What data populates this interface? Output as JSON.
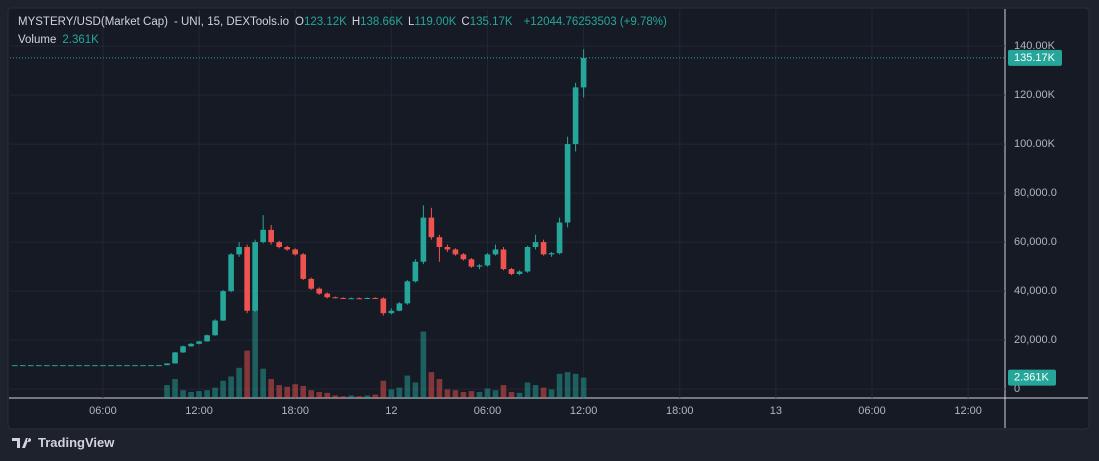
{
  "chart_data": {
    "type": "candlestick",
    "title": "MYSTERY/USD(Market Cap)",
    "subtitle": "- UNI, 15, DEXTools.io",
    "ohlc_legend": [
      [
        "O",
        "123.12K"
      ],
      [
        "H",
        "138.66K"
      ],
      [
        "L",
        "119.00K"
      ],
      [
        "C",
        "135.17K"
      ]
    ],
    "change": "+12044.76253503 (+9.78%)",
    "volume_title": "Volume",
    "volume_legend": "2.361K",
    "last_price": {
      "value": 135170,
      "label": "135.17K"
    },
    "last_volume": {
      "value": 2361,
      "label": "2.361K"
    },
    "brand": "TradingView",
    "up_color": "#26a69a",
    "down_color": "#ef5350",
    "grid": true,
    "x": [
      0,
      0.5,
      1,
      1.5,
      2,
      2.5,
      3,
      3.5,
      4,
      4.5,
      5,
      5.5,
      6,
      6.5,
      7,
      7.5,
      8,
      8.5,
      9,
      9.5,
      10,
      10.5,
      11,
      11.5,
      12,
      12.5,
      13,
      13.5,
      14,
      14.5,
      15,
      15.5,
      16,
      16.5,
      17,
      17.5,
      18,
      18.5,
      19,
      19.5,
      20,
      20.5,
      21,
      21.5,
      22,
      22.5,
      23,
      23.5,
      24,
      24.5,
      25,
      25.5,
      26,
      26.5,
      27,
      27.5,
      28,
      28.5,
      29,
      29.5,
      30,
      30.5,
      31,
      31.5,
      32,
      32.5,
      33,
      33.5,
      34,
      34.5,
      35,
      35.5,
      36
    ],
    "open": [
      9800,
      9800,
      9800,
      9800,
      9800,
      9800,
      9800,
      9800,
      9800,
      9800,
      9800,
      9800,
      9800,
      9800,
      9800,
      9800,
      9800,
      9800,
      9800,
      9800,
      9800,
      10500,
      15000,
      17500,
      18500,
      19500,
      22000,
      28000,
      40000,
      55000,
      58000,
      32000,
      60000,
      65000,
      60000,
      58000,
      57000,
      55000,
      45000,
      41000,
      39000,
      37500,
      37200,
      37000,
      37100,
      37000,
      37200,
      37000,
      31000,
      32000,
      35000,
      44000,
      52000,
      70000,
      62000,
      58000,
      57000,
      55000,
      53000,
      50000,
      50500,
      55000,
      57000,
      49000,
      47000,
      48000,
      58000,
      60000,
      55000,
      55500,
      68000,
      100000,
      123120
    ],
    "high": [
      9800,
      9800,
      9800,
      9800,
      9800,
      9800,
      9800,
      9800,
      9800,
      9800,
      9800,
      9800,
      9800,
      9800,
      9800,
      9800,
      9800,
      9800,
      9800,
      9800,
      10600,
      15200,
      17800,
      18800,
      19700,
      22300,
      28500,
      40500,
      55500,
      60000,
      59000,
      61000,
      71000,
      67000,
      60500,
      58500,
      57500,
      55500,
      45500,
      41500,
      39500,
      37800,
      37500,
      37400,
      37400,
      37400,
      37500,
      37500,
      33000,
      35500,
      44500,
      53000,
      75000,
      74000,
      63000,
      59000,
      57500,
      55500,
      53500,
      51000,
      55500,
      59000,
      58000,
      49500,
      48500,
      58500,
      63000,
      61000,
      56000,
      70000,
      103000,
      125000,
      138660
    ],
    "low": [
      9800,
      9800,
      9800,
      9800,
      9800,
      9800,
      9800,
      9800,
      9800,
      9800,
      9800,
      9800,
      9800,
      9800,
      9800,
      9800,
      9800,
      9800,
      9800,
      9800,
      9800,
      10500,
      14800,
      17300,
      18300,
      19400,
      21800,
      27800,
      39500,
      54000,
      31000,
      31500,
      59500,
      59000,
      57500,
      56500,
      54500,
      44500,
      40500,
      38500,
      37000,
      37000,
      36800,
      36800,
      36800,
      36800,
      36900,
      30000,
      30500,
      31800,
      34500,
      43500,
      51000,
      61000,
      52000,
      56000,
      54500,
      52500,
      49500,
      49000,
      50000,
      54500,
      48500,
      46500,
      46500,
      47500,
      57000,
      54500,
      54000,
      55000,
      66000,
      97000,
      119000
    ],
    "close": [
      9800,
      9800,
      9800,
      9800,
      9800,
      9800,
      9800,
      9800,
      9800,
      9800,
      9800,
      9800,
      9800,
      9800,
      9800,
      9800,
      9800,
      9800,
      9800,
      9800,
      10500,
      15000,
      17500,
      18500,
      19500,
      22000,
      28000,
      40000,
      55000,
      58000,
      32000,
      60000,
      65000,
      60000,
      58000,
      57000,
      55000,
      45000,
      41000,
      39000,
      37500,
      37200,
      37000,
      37100,
      37000,
      37200,
      37000,
      31000,
      32000,
      35000,
      44000,
      52000,
      70000,
      62000,
      58000,
      57000,
      55000,
      53000,
      50000,
      50500,
      55000,
      57000,
      49000,
      47000,
      48000,
      58000,
      60000,
      55000,
      55500,
      68000,
      100000,
      123120,
      135170
    ],
    "volume": [
      0,
      0,
      0,
      0,
      0,
      0,
      0,
      0,
      0,
      0,
      0,
      0,
      0,
      0,
      0,
      0,
      0,
      0,
      0,
      0,
      1500,
      2200,
      900,
      700,
      800,
      900,
      1200,
      2000,
      2500,
      3500,
      5500,
      11400,
      3400,
      2200,
      1500,
      1300,
      1600,
      1400,
      900,
      700,
      600,
      300,
      200,
      300,
      200,
      300,
      400,
      2000,
      1000,
      1200,
      2600,
      1800,
      7700,
      3000,
      2200,
      1000,
      900,
      700,
      800,
      700,
      1100,
      900,
      1500,
      700,
      600,
      1800,
      1500,
      1200,
      1000,
      2800,
      3000,
      2800,
      2361
    ],
    "xlim": [
      0.2,
      62.3
    ],
    "xticks": [
      {
        "value": 6,
        "label": "06:00"
      },
      {
        "value": 12,
        "label": "12:00"
      },
      {
        "value": 18,
        "label": "18:00"
      },
      {
        "value": 24,
        "label": "12"
      },
      {
        "value": 30,
        "label": "06:00"
      },
      {
        "value": 36,
        "label": "12:00"
      },
      {
        "value": 42,
        "label": "18:00"
      },
      {
        "value": 48,
        "label": "13"
      },
      {
        "value": 54,
        "label": "06:00"
      },
      {
        "value": 60,
        "label": "12:00"
      }
    ],
    "ylim": [
      -3600,
      154700
    ],
    "yticks": [
      0,
      {
        "value": 20000,
        "label": "20,000.0"
      },
      {
        "value": 40000,
        "label": "40,000.0"
      },
      {
        "value": 60000,
        "label": "60,000.0"
      },
      {
        "value": 80000,
        "label": "80,000.0"
      },
      {
        "value": 100000,
        "label": "100.00K"
      },
      {
        "value": 120000,
        "label": "120.00K"
      },
      {
        "value": 140000,
        "label": "140.00K"
      }
    ],
    "y2lim": [
      0,
      45000
    ]
  }
}
